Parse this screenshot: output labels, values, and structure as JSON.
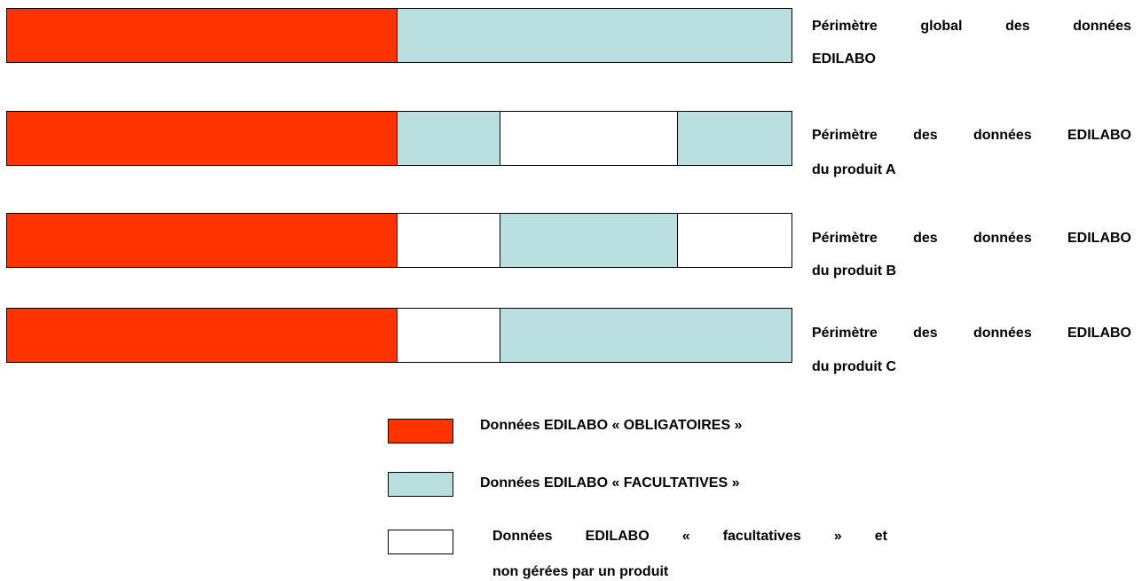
{
  "rows": [
    {
      "lines": [
        "Périmètre global des données",
        "EDILABO"
      ]
    },
    {
      "lines": [
        "Périmètre des données EDILABO",
        "du produit A"
      ]
    },
    {
      "lines": [
        "Périmètre des données EDILABO",
        "du produit B"
      ]
    },
    {
      "lines": [
        "Périmètre des données EDILABO",
        "du produit C"
      ]
    }
  ],
  "legend": [
    {
      "lines": [
        "Données EDILABO « OBLIGATOIRES »"
      ]
    },
    {
      "lines": [
        "Données EDILABO « FACULTATIVES »"
      ]
    },
    {
      "lines": [
        "Données EDILABO « facultatives » et",
        "non gérées par un produit"
      ]
    }
  ]
}
